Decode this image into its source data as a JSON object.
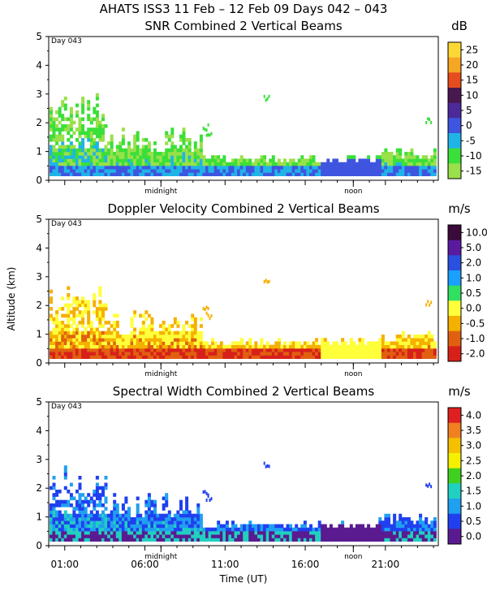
{
  "page_title": "AHATS ISS3  11 Feb – 12 Feb 09 Days 042 – 043",
  "x_axis": {
    "label": "Time (UT)",
    "ticks": [
      "01:00",
      "06:00",
      "11:00",
      "16:00",
      "21:00"
    ],
    "tick_hours": [
      1,
      6,
      11,
      16,
      21
    ],
    "range_hours": [
      0,
      24.3
    ],
    "markers": [
      "midnight",
      "noon"
    ],
    "marker_hours": [
      7,
      19
    ]
  },
  "y_axis": {
    "label": "Altitude (km)",
    "ticks": [
      "0",
      "1",
      "2",
      "3",
      "4",
      "5"
    ],
    "range_km": [
      0,
      5
    ]
  },
  "chart_data": [
    {
      "type": "heatmap",
      "title": "SNR Combined 2 Vertical Beams",
      "annotation": "Day 043",
      "unit": "dB",
      "colorbar_labels": [
        "25",
        "20",
        "15",
        "10",
        "5",
        "0",
        "-5",
        "-10",
        "-15"
      ],
      "colorbar_colors": [
        "#fdd835",
        "#f5a623",
        "#e74c1c",
        "#4a1850",
        "#4c2a9a",
        "#3f55e0",
        "#20b4e6",
        "#3adf3a",
        "#9ae04a"
      ]
    },
    {
      "type": "heatmap",
      "title": "Doppler Velocity Combined 2 Vertical Beams",
      "annotation": "Day 043",
      "unit": "m/s",
      "colorbar_labels": [
        "10.0",
        "5.0",
        "2.0",
        "1.0",
        "0.5",
        "0.0",
        "-0.5",
        "-1.0",
        "-2.0"
      ],
      "colorbar_colors": [
        "#3a0a3a",
        "#5a1aa0",
        "#2a50e0",
        "#1aa0ff",
        "#30e060",
        "#ffff3a",
        "#f5b000",
        "#e06010",
        "#d8201a"
      ]
    },
    {
      "type": "heatmap",
      "title": "Spectral Width Combined 2 Vertical Beams",
      "annotation": "Day 043",
      "unit": "m/s",
      "colorbar_labels": [
        "4.0",
        "3.5",
        "3.0",
        "2.5",
        "2.0",
        "1.5",
        "1.0",
        "0.5",
        "0.0"
      ],
      "colorbar_colors": [
        "#e02020",
        "#f08020",
        "#f5c000",
        "#f5f000",
        "#40d020",
        "#20d0c0",
        "#20a0f0",
        "#2040f0",
        "#5a1a90"
      ]
    }
  ],
  "colors": {
    "axis": "#000000",
    "background": "#ffffff"
  }
}
